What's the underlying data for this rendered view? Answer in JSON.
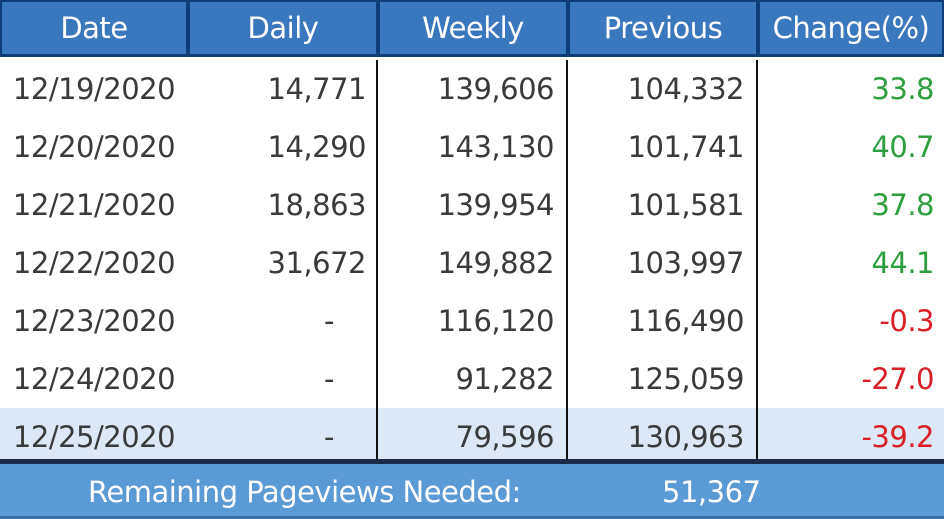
{
  "table": {
    "headers": [
      "Date",
      "Daily",
      "Weekly",
      "Previous",
      "Change(%)"
    ],
    "rows": [
      {
        "date": "12/19/2020",
        "daily": "14,771",
        "weekly": "139,606",
        "previous": "104,332",
        "change": "33.8",
        "trend": "positive"
      },
      {
        "date": "12/20/2020",
        "daily": "14,290",
        "weekly": "143,130",
        "previous": "101,741",
        "change": "40.7",
        "trend": "positive"
      },
      {
        "date": "12/21/2020",
        "daily": "18,863",
        "weekly": "139,954",
        "previous": "101,581",
        "change": "37.8",
        "trend": "positive"
      },
      {
        "date": "12/22/2020",
        "daily": "31,672",
        "weekly": "149,882",
        "previous": "103,997",
        "change": "44.1",
        "trend": "positive"
      },
      {
        "date": "12/23/2020",
        "daily": "-",
        "weekly": "116,120",
        "previous": "116,490",
        "change": "-0.3",
        "trend": "negative"
      },
      {
        "date": "12/24/2020",
        "daily": "-",
        "weekly": "91,282",
        "previous": "125,059",
        "change": "-27.0",
        "trend": "negative"
      },
      {
        "date": "12/25/2020",
        "daily": "-",
        "weekly": "79,596",
        "previous": "130,963",
        "change": "-39.2",
        "trend": "negative",
        "highlighted": true
      }
    ]
  },
  "footer": {
    "label": "Remaining Pageviews Needed:",
    "value": "51,367"
  },
  "colors": {
    "header_bg": "#3a78bd",
    "positive": "#2e9e3e",
    "negative": "#d81f26",
    "footer_bg": "#5b9bd5",
    "highlight_row": "#dce8f5"
  }
}
